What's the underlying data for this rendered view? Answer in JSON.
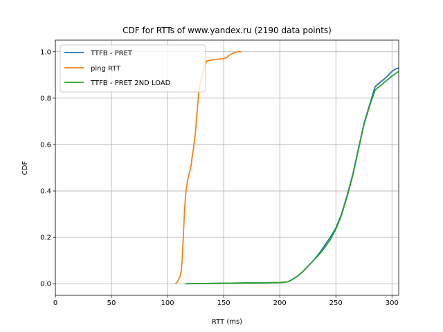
{
  "chart_data": {
    "type": "line",
    "title": "CDF for RTTs of www.yandex.ru (2190 data points)",
    "xlabel": "RTT (ms)",
    "ylabel": "CDF",
    "xlim": [
      0,
      306
    ],
    "ylim": [
      -0.05,
      1.05
    ],
    "xticks": [
      0,
      50,
      100,
      150,
      200,
      250,
      300
    ],
    "yticks": [
      0.0,
      0.2,
      0.4,
      0.6,
      0.8,
      1.0
    ],
    "xtick_labels": [
      "0",
      "50",
      "100",
      "150",
      "200",
      "250",
      "300"
    ],
    "ytick_labels": [
      "0.0",
      "0.2",
      "0.4",
      "0.6",
      "0.8",
      "1.0"
    ],
    "grid": true,
    "legend_position": "top-left",
    "series": [
      {
        "name": "TTFB - PRET",
        "color": "#1f77b4",
        "x": [
          116,
          150,
          200,
          207,
          210,
          215,
          220,
          225,
          230,
          235,
          240,
          245,
          250,
          255,
          260,
          265,
          270,
          275,
          280,
          285,
          290,
          295,
          300,
          303,
          306
        ],
        "y": [
          0.0,
          0.002,
          0.005,
          0.008,
          0.015,
          0.03,
          0.05,
          0.075,
          0.1,
          0.13,
          0.165,
          0.2,
          0.24,
          0.3,
          0.38,
          0.47,
          0.58,
          0.69,
          0.77,
          0.85,
          0.87,
          0.89,
          0.915,
          0.925,
          0.93
        ]
      },
      {
        "name": "ping RTT",
        "color": "#ff7f0e",
        "x": [
          107,
          109,
          111,
          112,
          113,
          114,
          115,
          116,
          117,
          118,
          119,
          120,
          121,
          122,
          123,
          124,
          125,
          126,
          127,
          128,
          129,
          130,
          131,
          132,
          133,
          134,
          135,
          140,
          145,
          150,
          153,
          155,
          158,
          160,
          163,
          166
        ],
        "y": [
          0.0,
          0.01,
          0.03,
          0.05,
          0.1,
          0.2,
          0.3,
          0.38,
          0.42,
          0.45,
          0.47,
          0.49,
          0.51,
          0.55,
          0.58,
          0.62,
          0.66,
          0.72,
          0.78,
          0.83,
          0.86,
          0.88,
          0.9,
          0.92,
          0.94,
          0.95,
          0.96,
          0.965,
          0.968,
          0.97,
          0.975,
          0.985,
          0.993,
          0.997,
          1.0,
          1.0
        ]
      },
      {
        "name": "TTFB - PRET 2ND LOAD",
        "color": "#2ca02c",
        "x": [
          116,
          150,
          200,
          207,
          210,
          215,
          220,
          225,
          230,
          235,
          240,
          245,
          250,
          255,
          260,
          265,
          270,
          275,
          280,
          285,
          290,
          295,
          300,
          303,
          306
        ],
        "y": [
          0.0,
          0.002,
          0.005,
          0.008,
          0.015,
          0.03,
          0.05,
          0.075,
          0.1,
          0.125,
          0.155,
          0.19,
          0.235,
          0.295,
          0.375,
          0.465,
          0.575,
          0.685,
          0.765,
          0.835,
          0.855,
          0.875,
          0.895,
          0.905,
          0.915
        ]
      }
    ]
  }
}
